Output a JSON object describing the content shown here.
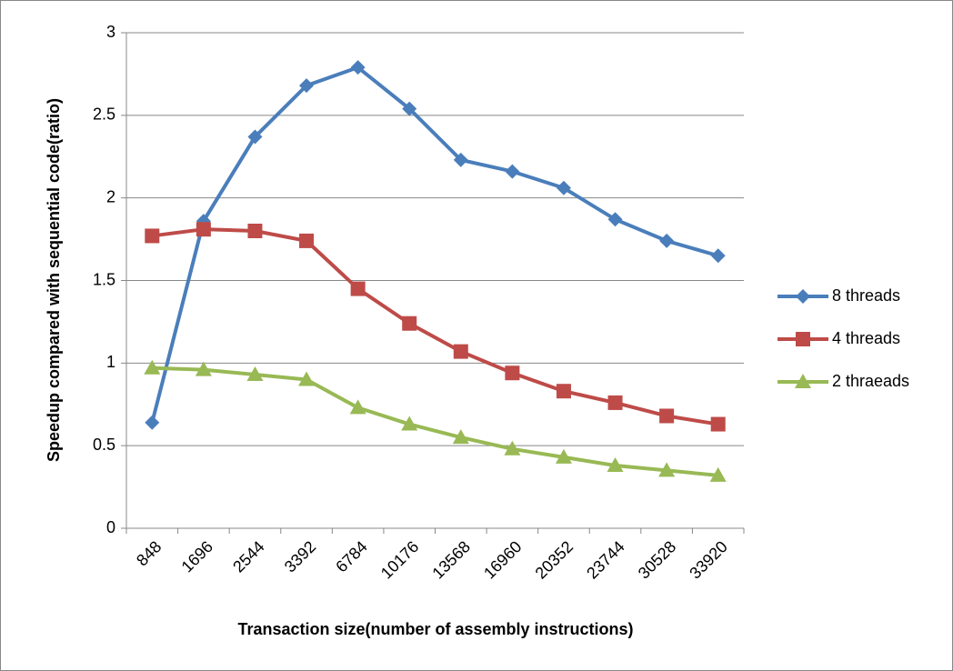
{
  "chart_data": {
    "type": "line",
    "x_label": "Transaction size(number of assembly instructions)",
    "y_label": "Speedup compared with sequential code(ratio)",
    "categories": [
      "848",
      "1696",
      "2544",
      "3392",
      "6784",
      "10176",
      "13568",
      "16960",
      "20352",
      "23744",
      "30528",
      "33920"
    ],
    "series": [
      {
        "name": "8 threads",
        "color": "#4a7ebb",
        "marker": "diamond",
        "values": [
          0.64,
          1.86,
          2.37,
          2.68,
          2.79,
          2.54,
          2.23,
          2.16,
          2.06,
          1.87,
          1.74,
          1.65
        ]
      },
      {
        "name": "4 threads",
        "color": "#be4b48",
        "marker": "square",
        "values": [
          1.77,
          1.81,
          1.8,
          1.74,
          1.45,
          1.24,
          1.07,
          0.94,
          0.83,
          0.76,
          0.68,
          0.63
        ]
      },
      {
        "name": "2 thraeads",
        "color": "#98b954",
        "marker": "triangle",
        "values": [
          0.97,
          0.96,
          0.93,
          0.9,
          0.73,
          0.63,
          0.55,
          0.48,
          0.43,
          0.38,
          0.35,
          0.32
        ]
      }
    ],
    "ylim": [
      0,
      3
    ],
    "yticks": [
      0,
      0.5,
      1,
      1.5,
      2,
      2.5,
      3
    ],
    "grid": true,
    "legend": "right"
  }
}
